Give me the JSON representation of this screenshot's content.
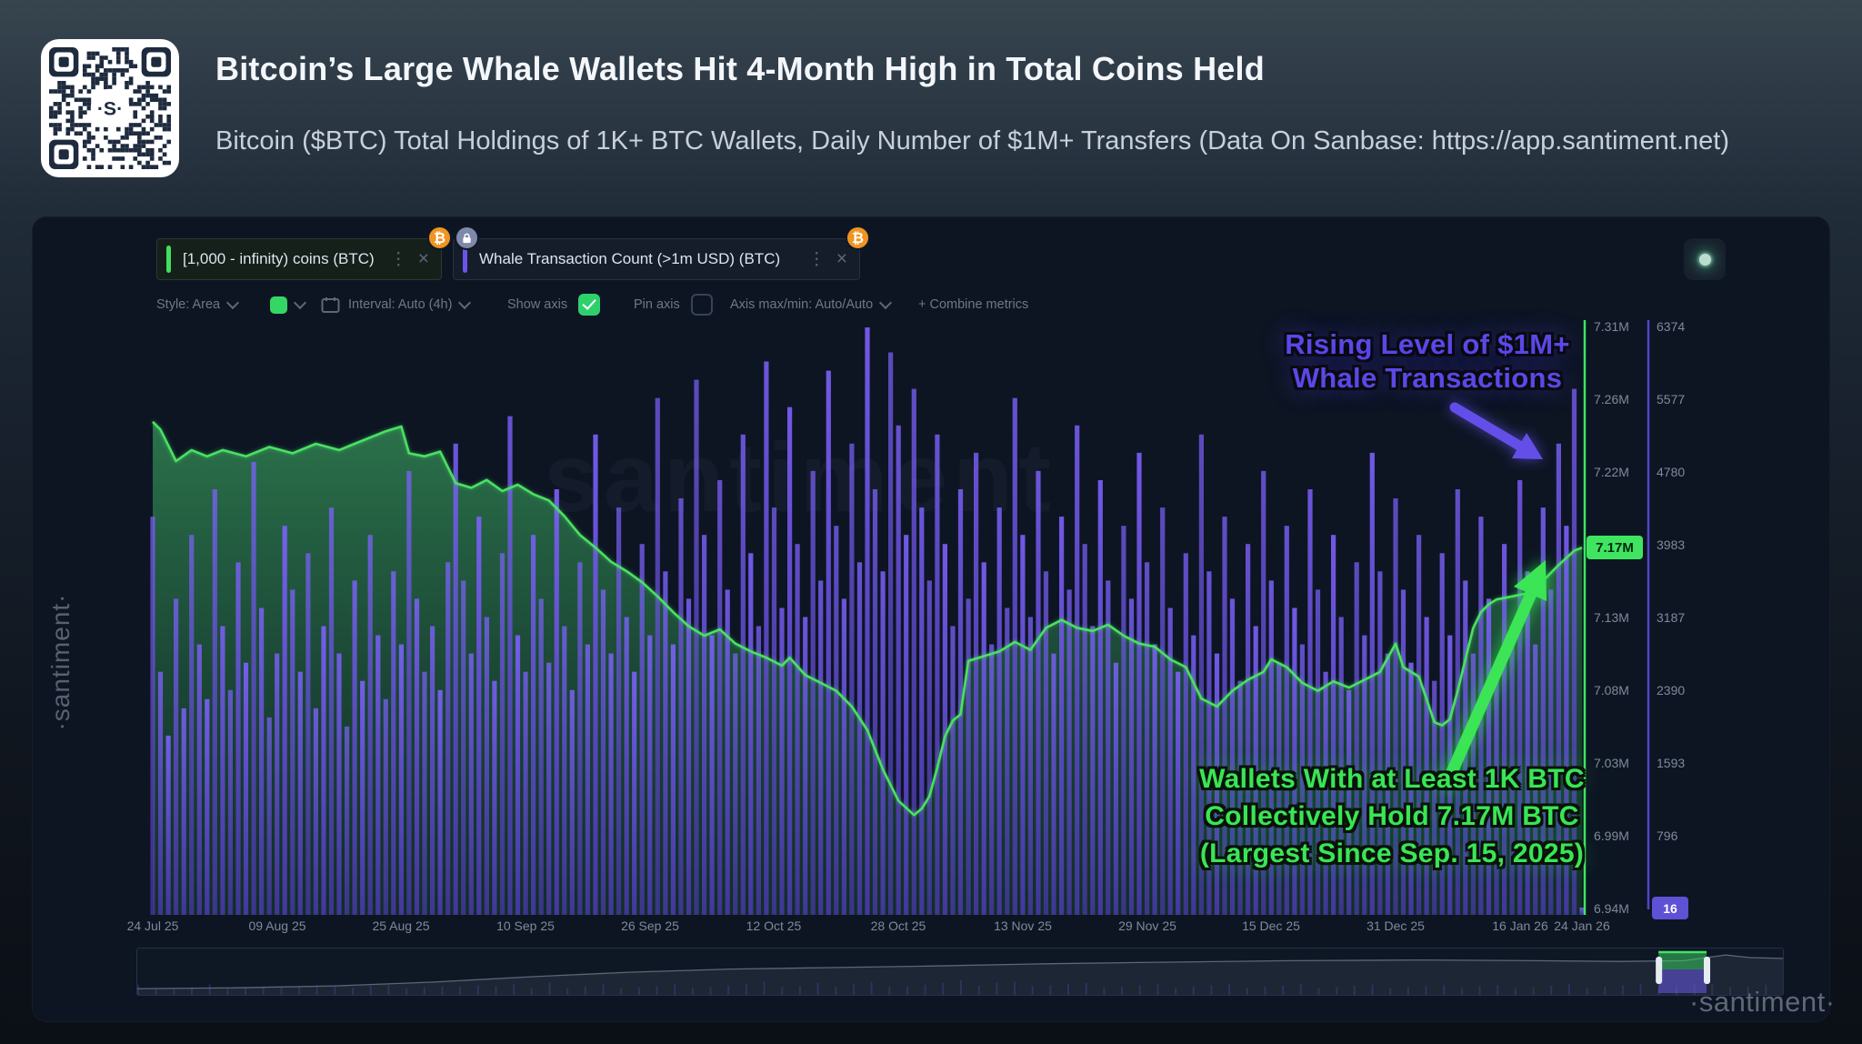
{
  "header": {
    "title": "Bitcoin’s Large Whale Wallets Hit 4-Month High in Total Coins Held",
    "subtitle": "Bitcoin ($BTC) Total Holdings of 1K+ BTC Wallets, Daily Number of $1M+ Transfers (Data On Sanbase: https://app.santiment.net)"
  },
  "qr": {
    "logo": "·S·"
  },
  "icons": {
    "kebab": "⋮",
    "close": "×",
    "btc": "₿"
  },
  "tabs": [
    {
      "label": "[1,000 - infinity) coins (BTC)",
      "accent": "#43df5f",
      "badges": [
        "btc"
      ]
    },
    {
      "label": "Whale Transaction Count (>1m USD) (BTC)",
      "accent": "#6a55e8",
      "badges": [
        "lock",
        "btc"
      ]
    }
  ],
  "toolbar": {
    "style": "Style: Area",
    "interval": "Interval: Auto (4h)",
    "show_axis": "Show axis",
    "pin_axis": "Pin axis",
    "axis_maxmin": "Axis max/min: Auto/Auto",
    "combine": "+ Combine metrics",
    "swatch_color": "#35d764",
    "show_axis_checked": true,
    "pin_axis_checked": false
  },
  "annotations": {
    "purple": {
      "line1": "Rising Level of $1M+",
      "line2": "Whale Transactions",
      "color": "#5b48e8"
    },
    "green": {
      "line1": "Wallets With at Least 1K BTC",
      "line2": "Collectively Hold 7.17M BTC",
      "line3": "(Largest Since Sep. 15, 2025)",
      "color": "#3ae556"
    }
  },
  "watermarks": {
    "left": "·santiment·",
    "center": "santiment",
    "bottom_right": "·santiment·"
  },
  "chart_data": {
    "type": "mixed",
    "title": "BTC whale holdings vs whale transaction count",
    "x_start": "24 Jul 25",
    "x_end": "24 Jan 26",
    "x_ticks": [
      {
        "d": 0,
        "label": "24 Jul 25"
      },
      {
        "d": 16,
        "label": "09 Aug 25"
      },
      {
        "d": 32,
        "label": "25 Aug 25"
      },
      {
        "d": 48,
        "label": "10 Sep 25"
      },
      {
        "d": 64,
        "label": "26 Sep 25"
      },
      {
        "d": 80,
        "label": "12 Oct 25"
      },
      {
        "d": 96,
        "label": "28 Oct 25"
      },
      {
        "d": 112,
        "label": "13 Nov 25"
      },
      {
        "d": 128,
        "label": "29 Nov 25"
      },
      {
        "d": 144,
        "label": "15 Dec 25"
      },
      {
        "d": 160,
        "label": "31 Dec 25"
      },
      {
        "d": 176,
        "label": "16 Jan 26"
      },
      {
        "d": 184,
        "label": "24 Jan 26"
      }
    ],
    "green_axis": {
      "metric": "[1,000 - infinity) coins (BTC)",
      "unit": "M BTC",
      "min": 6.94,
      "max": 7.31,
      "ticks": [
        "7.31M",
        "7.26M",
        "7.22M",
        "7.17M",
        "7.13M",
        "7.08M",
        "7.03M",
        "6.99M",
        "6.94M"
      ],
      "current_label": "7.17M",
      "current_value": 7.17,
      "color": "#3fe561"
    },
    "purple_axis": {
      "metric": "Whale Transaction Count (>1m USD) (BTC)",
      "min": 16,
      "max": 6374,
      "ticks": [
        "6374",
        "5577",
        "4780",
        "3983",
        "3187",
        "2390",
        "1593",
        "796"
      ],
      "current_label": "16",
      "current_value": 16,
      "color": "#6a55e8"
    },
    "series": [
      {
        "name": "[1,000 - infinity) coins (BTC)",
        "type": "area",
        "color": "#4ce063",
        "points": [
          [
            0,
            7.25
          ],
          [
            1,
            7.245
          ],
          [
            3,
            7.225
          ],
          [
            5,
            7.232
          ],
          [
            7,
            7.228
          ],
          [
            9,
            7.232
          ],
          [
            12,
            7.228
          ],
          [
            15,
            7.234
          ],
          [
            18,
            7.23
          ],
          [
            21,
            7.236
          ],
          [
            24,
            7.232
          ],
          [
            27,
            7.238
          ],
          [
            30,
            7.244
          ],
          [
            32,
            7.247
          ],
          [
            33,
            7.23
          ],
          [
            35,
            7.228
          ],
          [
            37,
            7.231
          ],
          [
            39,
            7.211
          ],
          [
            41,
            7.208
          ],
          [
            43,
            7.213
          ],
          [
            45,
            7.206
          ],
          [
            47,
            7.21
          ],
          [
            49,
            7.204
          ],
          [
            51,
            7.2
          ],
          [
            53,
            7.19
          ],
          [
            55,
            7.178
          ],
          [
            57,
            7.17
          ],
          [
            59,
            7.161
          ],
          [
            61,
            7.155
          ],
          [
            63,
            7.148
          ],
          [
            65,
            7.139
          ],
          [
            67,
            7.129
          ],
          [
            69,
            7.12
          ],
          [
            71,
            7.114
          ],
          [
            73,
            7.118
          ],
          [
            75,
            7.109
          ],
          [
            77,
            7.104
          ],
          [
            79,
            7.1
          ],
          [
            81,
            7.095
          ],
          [
            82,
            7.1
          ],
          [
            84,
            7.089
          ],
          [
            86,
            7.084
          ],
          [
            88,
            7.079
          ],
          [
            90,
            7.069
          ],
          [
            92,
            7.054
          ],
          [
            94,
            7.029
          ],
          [
            96,
            7.009
          ],
          [
            98,
            7.0
          ],
          [
            99,
            7.004
          ],
          [
            100,
            7.012
          ],
          [
            101,
            7.03
          ],
          [
            102,
            7.05
          ],
          [
            103,
            7.06
          ],
          [
            104,
            7.064
          ],
          [
            105,
            7.098
          ],
          [
            107,
            7.101
          ],
          [
            109,
            7.104
          ],
          [
            111,
            7.11
          ],
          [
            113,
            7.105
          ],
          [
            115,
            7.119
          ],
          [
            117,
            7.124
          ],
          [
            119,
            7.119
          ],
          [
            121,
            7.117
          ],
          [
            123,
            7.121
          ],
          [
            125,
            7.114
          ],
          [
            127,
            7.109
          ],
          [
            129,
            7.107
          ],
          [
            131,
            7.099
          ],
          [
            133,
            7.094
          ],
          [
            135,
            7.074
          ],
          [
            137,
            7.069
          ],
          [
            139,
            7.079
          ],
          [
            141,
            7.086
          ],
          [
            143,
            7.091
          ],
          [
            144,
            7.099
          ],
          [
            146,
            7.094
          ],
          [
            148,
            7.084
          ],
          [
            150,
            7.079
          ],
          [
            152,
            7.085
          ],
          [
            154,
            7.081
          ],
          [
            156,
            7.086
          ],
          [
            158,
            7.091
          ],
          [
            160,
            7.109
          ],
          [
            161,
            7.094
          ],
          [
            163,
            7.088
          ],
          [
            165,
            7.059
          ],
          [
            166,
            7.057
          ],
          [
            167,
            7.061
          ],
          [
            168,
            7.079
          ],
          [
            169,
            7.099
          ],
          [
            170,
            7.119
          ],
          [
            171,
            7.129
          ],
          [
            172,
            7.134
          ],
          [
            173,
            7.137
          ],
          [
            175,
            7.139
          ],
          [
            177,
            7.141
          ],
          [
            179,
            7.149
          ],
          [
            181,
            7.159
          ],
          [
            183,
            7.168
          ],
          [
            184,
            7.17
          ]
        ]
      },
      {
        "name": "Whale Transaction Count (>1m USD) (BTC)",
        "type": "bar",
        "color": "#6c56e4",
        "values": [
          4300,
          2600,
          1900,
          3400,
          2200,
          4100,
          2900,
          2300,
          4600,
          3100,
          2400,
          3800,
          2700,
          4900,
          3300,
          2100,
          2800,
          4200,
          3500,
          2600,
          3900,
          2200,
          3100,
          4400,
          2800,
          2000,
          3600,
          2500,
          4100,
          3000,
          2300,
          3700,
          2900,
          4800,
          3400,
          2600,
          3100,
          2400,
          3800,
          5100,
          3600,
          2800,
          4300,
          3200,
          2500,
          3900,
          5400,
          3000,
          2600,
          4100,
          3400,
          2700,
          4600,
          3100,
          2400,
          3800,
          2900,
          5200,
          3500,
          2800,
          4400,
          3200,
          2600,
          4000,
          3000,
          5600,
          3700,
          2900,
          4500,
          3400,
          5800,
          4100,
          3000,
          4700,
          3500,
          2800,
          5200,
          3900,
          3100,
          6000,
          4400,
          3300,
          5500,
          4000,
          3200,
          4800,
          3600,
          5900,
          4200,
          3400,
          5100,
          3800,
          6374,
          4600,
          3700,
          6100,
          5300,
          4100,
          5700,
          4400,
          3600,
          5200,
          4000,
          3100,
          4600,
          3400,
          5000,
          3800,
          2900,
          4400,
          3300,
          5600,
          4100,
          3200,
          4800,
          3700,
          2800,
          4300,
          3500,
          5300,
          4000,
          3100,
          4700,
          3600,
          2700,
          4200,
          3400,
          5000,
          3800,
          2900,
          4400,
          3300,
          2600,
          3900,
          3000,
          5200,
          3700,
          2800,
          4300,
          3400,
          2500,
          4000,
          3100,
          4800,
          3600,
          2700,
          4200,
          3300,
          2900,
          4600,
          3500,
          2600,
          4100,
          3200,
          2400,
          3800,
          3000,
          5000,
          3700,
          2800,
          4500,
          3500,
          2700,
          4100,
          3200,
          2500,
          3900,
          3000,
          4600,
          3600,
          2800,
          4300,
          3400,
          2600,
          4000,
          3100,
          4700,
          3700,
          2900,
          4400,
          3500,
          5100,
          4200,
          5700,
          16
        ]
      }
    ],
    "minimap": {
      "outline": [
        [
          0,
          0.07
        ],
        [
          0.06,
          0.09
        ],
        [
          0.12,
          0.14
        ],
        [
          0.18,
          0.24
        ],
        [
          0.24,
          0.38
        ],
        [
          0.3,
          0.5
        ],
        [
          0.36,
          0.58
        ],
        [
          0.42,
          0.62
        ],
        [
          0.48,
          0.66
        ],
        [
          0.55,
          0.72
        ],
        [
          0.62,
          0.76
        ],
        [
          0.7,
          0.8
        ],
        [
          0.78,
          0.82
        ],
        [
          0.85,
          0.8
        ],
        [
          0.9,
          0.78
        ],
        [
          0.94,
          0.8
        ],
        [
          0.965,
          0.95
        ],
        [
          0.98,
          0.88
        ],
        [
          1,
          0.86
        ]
      ],
      "selection": [
        0.9244,
        0.9536
      ]
    }
  }
}
